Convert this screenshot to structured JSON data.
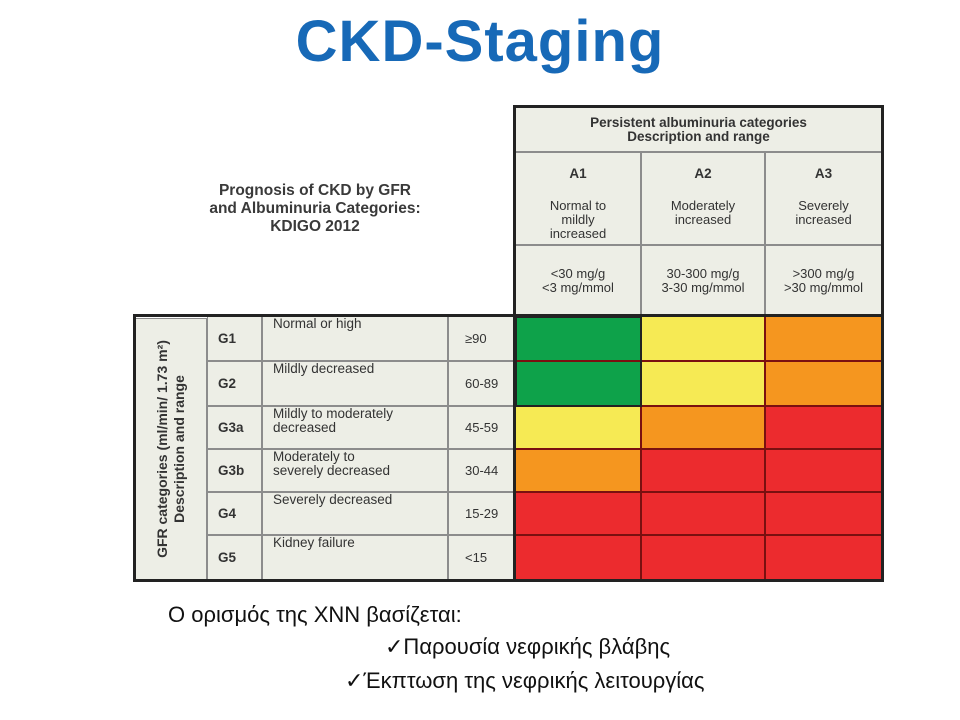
{
  "title": "CKD-Staging",
  "prognosis": {
    "line1": "Prognosis of CKD by GFR",
    "line2": "and Albuminuria Categories:",
    "line3": "KDIGO 2012"
  },
  "albuminuria": {
    "header_line1": "Persistent albuminuria categories",
    "header_line2": "Description and range",
    "categories": [
      {
        "code": "A1",
        "desc_lines": [
          "Normal to",
          "mildly",
          "increased"
        ],
        "range_lines": [
          "<30 mg/g",
          "<3 mg/mmol"
        ]
      },
      {
        "code": "A2",
        "desc_lines": [
          "Moderately",
          "increased"
        ],
        "range_lines": [
          "30-300 mg/g",
          "3-30 mg/mmol"
        ]
      },
      {
        "code": "A3",
        "desc_lines": [
          "Severely",
          "increased"
        ],
        "range_lines": [
          ">300 mg/g",
          ">30 mg/mmol"
        ]
      }
    ]
  },
  "gfr": {
    "axis_line1": "GFR categories (ml/min/ 1.73 m²)",
    "axis_line2": "Description and range",
    "rows": [
      {
        "code": "G1",
        "desc_lines": [
          "Normal or high"
        ],
        "range": "≥90",
        "risk": [
          "green",
          "yellow",
          "orange"
        ]
      },
      {
        "code": "G2",
        "desc_lines": [
          "Mildly decreased"
        ],
        "range": "60-89",
        "risk": [
          "green",
          "yellow",
          "orange"
        ]
      },
      {
        "code": "G3a",
        "desc_lines": [
          "Mildly to moderately",
          "decreased"
        ],
        "range": "45-59",
        "risk": [
          "yellow",
          "orange",
          "red"
        ]
      },
      {
        "code": "G3b",
        "desc_lines": [
          "Moderately to",
          "severely decreased"
        ],
        "range": "30-44",
        "risk": [
          "orange",
          "red",
          "red"
        ]
      },
      {
        "code": "G4",
        "desc_lines": [
          "Severely decreased"
        ],
        "range": "15-29",
        "risk": [
          "red",
          "red",
          "red"
        ]
      },
      {
        "code": "G5",
        "desc_lines": [
          "Kidney failure"
        ],
        "range": "<15",
        "risk": [
          "red",
          "red",
          "red"
        ]
      }
    ]
  },
  "risk_colors": {
    "green": "#0ea24a",
    "yellow": "#f6ea54",
    "orange": "#f5961f",
    "red": "#ec2b2e"
  },
  "footer": {
    "line1": "Ο ορισμός της ΧΝΝ βασίζεται:",
    "line2": "✓Παρουσία νεφρικής βλάβης",
    "line3": "✓Έκπτωση της νεφρικής λειτουργίας"
  }
}
